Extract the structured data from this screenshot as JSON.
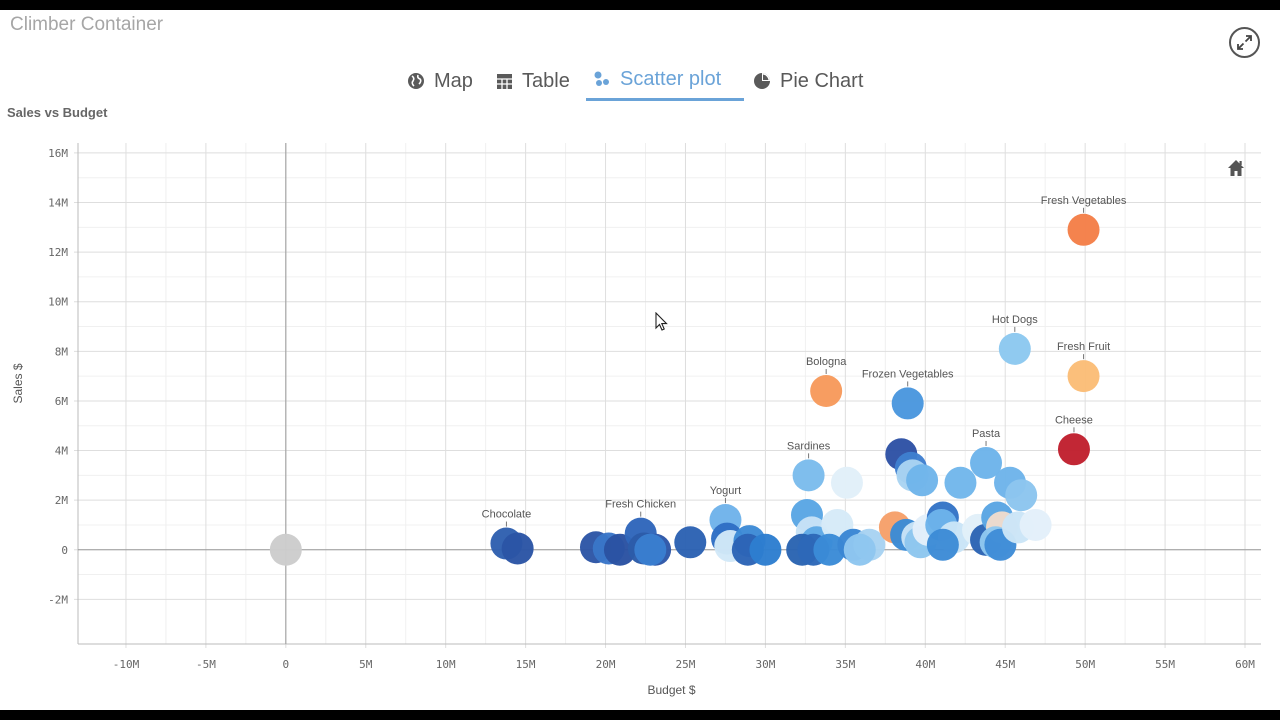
{
  "container": {
    "title": "Climber Container"
  },
  "tabs": [
    {
      "label": "Map",
      "icon": "globe-icon",
      "active": false
    },
    {
      "label": "Table",
      "icon": "table-icon",
      "active": false
    },
    {
      "label": "Scatter plot",
      "icon": "scatter-icon",
      "active": true
    },
    {
      "label": "Pie Chart",
      "icon": "pie-icon",
      "active": false
    }
  ],
  "colors": {
    "accent": "#6aa3d8",
    "grid": "#e6e6e6",
    "axis": "#999999"
  },
  "chart_data": {
    "type": "scatter",
    "title": "Sales vs Budget",
    "xlabel": "Budget $",
    "ylabel": "Sales $",
    "xlim": [
      -13,
      61
    ],
    "ylim": [
      -3.8,
      16.4
    ],
    "x_ticks": [
      -10,
      -5,
      0,
      5,
      10,
      15,
      20,
      25,
      30,
      35,
      40,
      45,
      50,
      55,
      60
    ],
    "x_tick_labels": [
      "-10M",
      "-5M",
      "0",
      "5M",
      "10M",
      "15M",
      "20M",
      "25M",
      "30M",
      "35M",
      "40M",
      "45M",
      "50M",
      "55M",
      "60M"
    ],
    "y_ticks": [
      -2,
      0,
      2,
      4,
      6,
      8,
      10,
      12,
      14,
      16
    ],
    "y_tick_labels": [
      "-2M",
      "0",
      "2M",
      "4M",
      "6M",
      "8M",
      "10M",
      "12M",
      "14M",
      "16M"
    ],
    "grid": true,
    "points": [
      {
        "x": 0,
        "y": 0,
        "color": "#cccccc",
        "label": ""
      },
      {
        "x": 13.8,
        "y": 0.25,
        "color": "#2f60b0",
        "label": "Chocolate"
      },
      {
        "x": 14.5,
        "y": 0.05,
        "color": "#2b55a5",
        "label": ""
      },
      {
        "x": 19.4,
        "y": 0.1,
        "color": "#2d56a6",
        "label": ""
      },
      {
        "x": 20.2,
        "y": 0.05,
        "color": "#3a76c8",
        "label": ""
      },
      {
        "x": 20.9,
        "y": 0.0,
        "color": "#2a52a2",
        "label": ""
      },
      {
        "x": 22.2,
        "y": 0.65,
        "color": "#2f66bb",
        "label": "Fresh Chicken"
      },
      {
        "x": 22.4,
        "y": 0.05,
        "color": "#2c5ca9",
        "label": ""
      },
      {
        "x": 23.1,
        "y": 0.0,
        "color": "#2d57a8",
        "label": ""
      },
      {
        "x": 22.8,
        "y": 0.0,
        "color": "#3a7ed0",
        "label": ""
      },
      {
        "x": 25.3,
        "y": 0.3,
        "color": "#2c62b3",
        "label": ""
      },
      {
        "x": 27.5,
        "y": 1.2,
        "color": "#6fb3ea",
        "label": "Yogurt"
      },
      {
        "x": 27.6,
        "y": 0.45,
        "color": "#2e6ec4",
        "label": ""
      },
      {
        "x": 27.8,
        "y": 0.15,
        "color": "#d2e8f8",
        "label": ""
      },
      {
        "x": 29.0,
        "y": 0.35,
        "color": "#3d8ad6",
        "label": ""
      },
      {
        "x": 28.9,
        "y": 0.0,
        "color": "#2c64b6",
        "label": ""
      },
      {
        "x": 30.0,
        "y": 0.0,
        "color": "#2d7ed0",
        "label": ""
      },
      {
        "x": 32.7,
        "y": 3.0,
        "color": "#7bbcec",
        "label": "Sardines"
      },
      {
        "x": 32.6,
        "y": 1.4,
        "color": "#5aa6e4",
        "label": ""
      },
      {
        "x": 32.9,
        "y": 0.7,
        "color": "#c7e2f6",
        "label": ""
      },
      {
        "x": 33.2,
        "y": 0.3,
        "color": "#5ea9e5",
        "label": ""
      },
      {
        "x": 32.3,
        "y": 0.0,
        "color": "#2a64b2",
        "label": ""
      },
      {
        "x": 33.0,
        "y": 0.0,
        "color": "#2d68b8",
        "label": ""
      },
      {
        "x": 34.5,
        "y": 1.0,
        "color": "#d6eaf8",
        "label": ""
      },
      {
        "x": 35.1,
        "y": 2.7,
        "color": "#e1eff9",
        "label": ""
      },
      {
        "x": 34.0,
        "y": 0.0,
        "color": "#3b8bd7",
        "label": ""
      },
      {
        "x": 33.8,
        "y": 6.4,
        "color": "#f79a5c",
        "label": "Bologna"
      },
      {
        "x": 35.5,
        "y": 0.2,
        "color": "#3a86d4",
        "label": ""
      },
      {
        "x": 36.5,
        "y": 0.2,
        "color": "#a8d3f2",
        "label": ""
      },
      {
        "x": 35.9,
        "y": 0.0,
        "color": "#8ec6ef",
        "label": ""
      },
      {
        "x": 38.9,
        "y": 5.9,
        "color": "#4a97de",
        "label": "Frozen Vegetables"
      },
      {
        "x": 38.5,
        "y": 3.85,
        "color": "#2e52a5",
        "label": ""
      },
      {
        "x": 39.1,
        "y": 3.3,
        "color": "#3f7fcf",
        "label": ""
      },
      {
        "x": 39.2,
        "y": 3.0,
        "color": "#a9d4f2",
        "label": ""
      },
      {
        "x": 39.8,
        "y": 2.8,
        "color": "#6fb5ea",
        "label": ""
      },
      {
        "x": 38.1,
        "y": 0.9,
        "color": "#f6a06a",
        "label": ""
      },
      {
        "x": 38.8,
        "y": 0.6,
        "color": "#3b8bd6",
        "label": ""
      },
      {
        "x": 39.5,
        "y": 0.5,
        "color": "#c8e3f6",
        "label": ""
      },
      {
        "x": 39.7,
        "y": 0.3,
        "color": "#8dc6ee",
        "label": ""
      },
      {
        "x": 40.2,
        "y": 0.8,
        "color": "#e3f0fa",
        "label": ""
      },
      {
        "x": 41.1,
        "y": 1.3,
        "color": "#3474c6",
        "label": ""
      },
      {
        "x": 41.0,
        "y": 1.0,
        "color": "#6cb3ea",
        "label": ""
      },
      {
        "x": 41.8,
        "y": 0.5,
        "color": "#c9e4f7",
        "label": ""
      },
      {
        "x": 41.1,
        "y": 0.2,
        "color": "#3d8bd6",
        "label": ""
      },
      {
        "x": 42.2,
        "y": 2.7,
        "color": "#72b7eb",
        "label": ""
      },
      {
        "x": 43.8,
        "y": 3.5,
        "color": "#6db4ea",
        "label": "Pasta"
      },
      {
        "x": 43.3,
        "y": 0.8,
        "color": "#e1eff9",
        "label": ""
      },
      {
        "x": 43.8,
        "y": 0.4,
        "color": "#2c64b4",
        "label": ""
      },
      {
        "x": 44.5,
        "y": 1.3,
        "color": "#5aa5e3",
        "label": ""
      },
      {
        "x": 44.8,
        "y": 0.9,
        "color": "#f0dccc",
        "label": ""
      },
      {
        "x": 44.4,
        "y": 0.3,
        "color": "#8fc8ef",
        "label": ""
      },
      {
        "x": 44.7,
        "y": 0.2,
        "color": "#3f8cd7",
        "label": ""
      },
      {
        "x": 45.3,
        "y": 2.7,
        "color": "#6eb4ea",
        "label": ""
      },
      {
        "x": 46.0,
        "y": 2.2,
        "color": "#8cc5ee",
        "label": ""
      },
      {
        "x": 45.8,
        "y": 0.9,
        "color": "#cbe5f7",
        "label": ""
      },
      {
        "x": 46.9,
        "y": 1.0,
        "color": "#e3f0fa",
        "label": ""
      },
      {
        "x": 45.6,
        "y": 8.1,
        "color": "#8cc8f0",
        "label": "Hot Dogs"
      },
      {
        "x": 49.9,
        "y": 12.9,
        "color": "#f47f48",
        "label": "Fresh Vegetables"
      },
      {
        "x": 49.9,
        "y": 7.0,
        "color": "#fbbd77",
        "label": "Fresh Fruit"
      },
      {
        "x": 49.3,
        "y": 4.05,
        "color": "#c0202e",
        "label": "Cheese"
      }
    ]
  }
}
